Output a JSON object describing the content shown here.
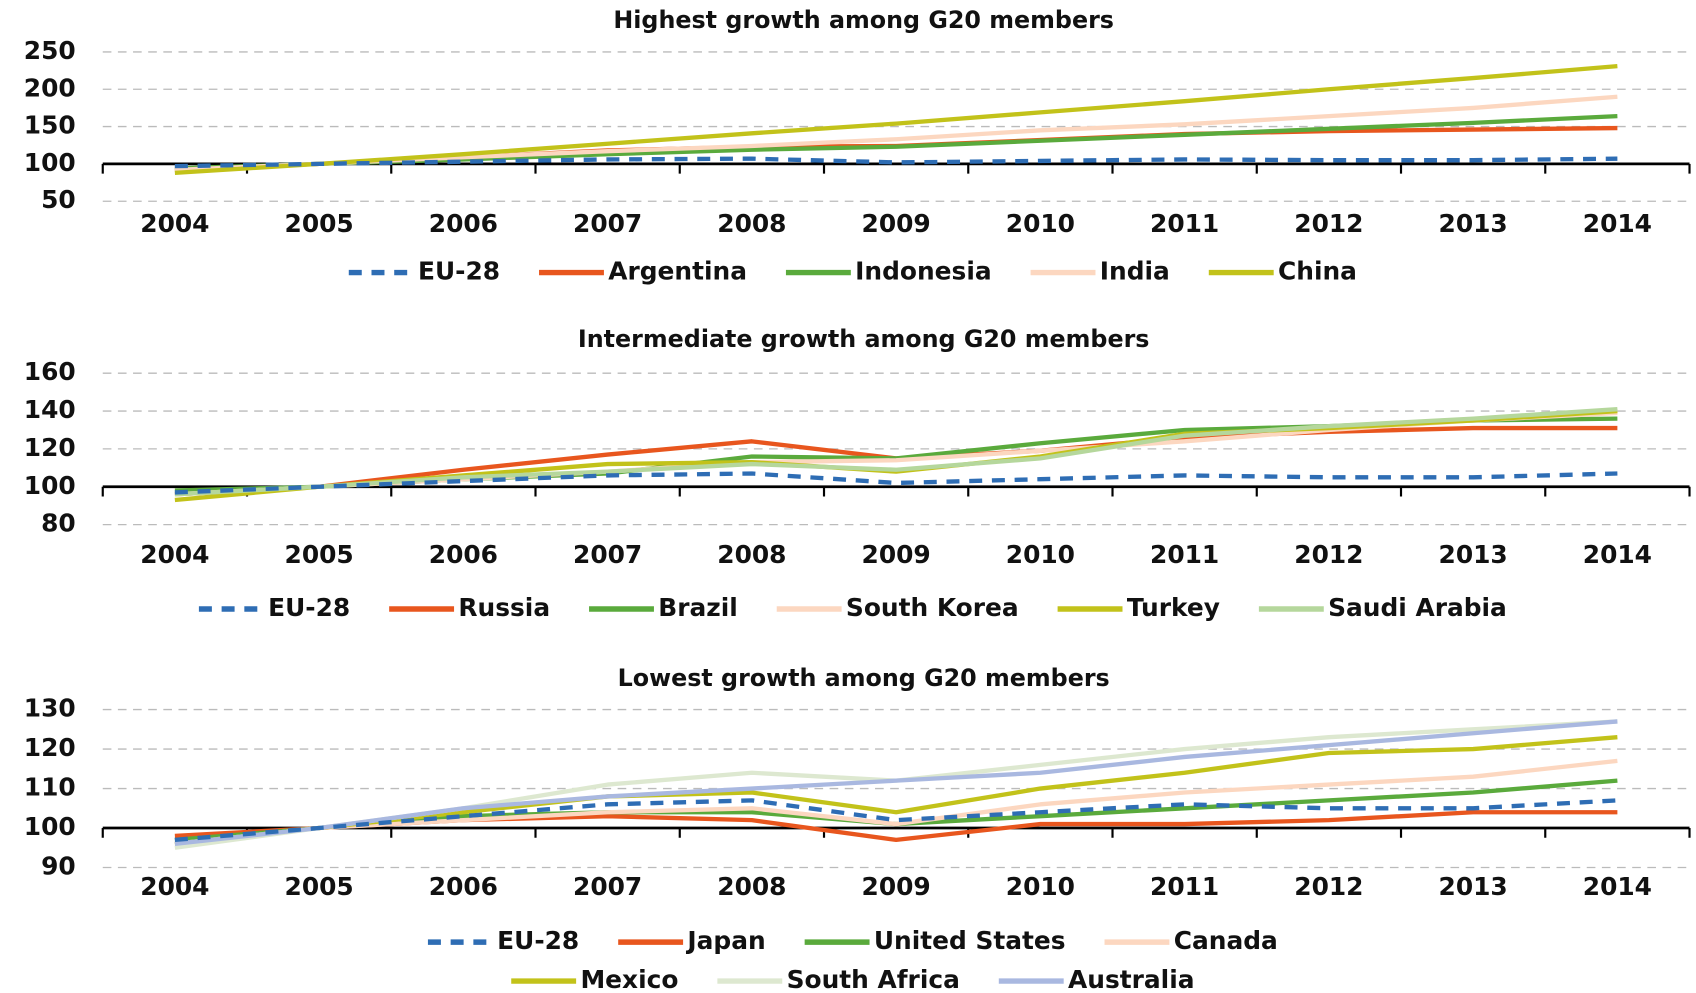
{
  "chart_data": [
    {
      "type": "line",
      "title": "Highest growth among G20 members",
      "categories": [
        "2004",
        "2005",
        "2006",
        "2007",
        "2008",
        "2009",
        "2010",
        "2011",
        "2012",
        "2013",
        "2014"
      ],
      "ylim": [
        50,
        250
      ],
      "yticks": [
        50,
        100,
        150,
        200,
        250
      ],
      "grid": true,
      "x_axis_crossing": 100,
      "series": [
        {
          "name": "EU-28",
          "color": "#2e6db4",
          "dashed": true,
          "values": [
            97,
            100,
            103,
            106,
            107,
            102,
            104,
            106,
            105,
            105,
            107
          ]
        },
        {
          "name": "Argentina",
          "color": "#e8561e",
          "values": [
            92,
            100,
            109,
            118,
            123,
            124,
            132,
            140,
            144,
            146,
            148
          ]
        },
        {
          "name": "Indonesia",
          "color": "#5aaa3c",
          "values": [
            94,
            100,
            106,
            113,
            119,
            123,
            131,
            139,
            147,
            155,
            164
          ]
        },
        {
          "name": "India",
          "color": "#fcd7c0",
          "values": [
            92,
            100,
            109,
            117,
            124,
            133,
            145,
            153,
            164,
            175,
            190
          ]
        },
        {
          "name": "China",
          "color": "#c2c21a",
          "values": [
            88,
            100,
            113,
            127,
            141,
            154,
            169,
            184,
            200,
            215,
            231
          ]
        }
      ]
    },
    {
      "type": "line",
      "title": "Intermediate growth among G20 members",
      "categories": [
        "2004",
        "2005",
        "2006",
        "2007",
        "2008",
        "2009",
        "2010",
        "2011",
        "2012",
        "2013",
        "2014"
      ],
      "ylim": [
        80,
        160
      ],
      "yticks": [
        80,
        100,
        120,
        140,
        160
      ],
      "grid": true,
      "x_axis_crossing": 100,
      "series": [
        {
          "name": "EU-28",
          "color": "#2e6db4",
          "dashed": true,
          "values": [
            97,
            100,
            103,
            106,
            107,
            102,
            104,
            106,
            105,
            105,
            107
          ]
        },
        {
          "name": "Russia",
          "color": "#e8561e",
          "values": [
            96,
            100,
            109,
            117,
            124,
            115,
            119,
            126,
            129,
            131,
            131
          ]
        },
        {
          "name": "Brazil",
          "color": "#5aaa3c",
          "values": [
            98,
            100,
            104,
            107,
            116,
            115,
            123,
            130,
            132,
            135,
            136
          ]
        },
        {
          "name": "South Korea",
          "color": "#fcd7c0",
          "values": [
            96,
            100,
            104,
            108,
            113,
            114,
            119,
            124,
            130,
            135,
            139
          ]
        },
        {
          "name": "Turkey",
          "color": "#c2c21a",
          "values": [
            93,
            100,
            106,
            112,
            113,
            108,
            116,
            128,
            131,
            135,
            140
          ]
        },
        {
          "name": "Saudi Arabia",
          "color": "#b5d79c",
          "values": [
            96,
            100,
            105,
            108,
            112,
            109,
            115,
            127,
            132,
            136,
            141
          ]
        }
      ]
    },
    {
      "type": "line",
      "title": "Lowest growth among G20 members",
      "categories": [
        "2004",
        "2005",
        "2006",
        "2007",
        "2008",
        "2009",
        "2010",
        "2011",
        "2012",
        "2013",
        "2014"
      ],
      "ylim": [
        90,
        130
      ],
      "yticks": [
        90,
        100,
        110,
        120,
        130
      ],
      "grid": true,
      "x_axis_crossing": 100,
      "series": [
        {
          "name": "EU-28",
          "color": "#2e6db4",
          "dashed": true,
          "values": [
            97,
            100,
            103,
            106,
            107,
            102,
            104,
            106,
            105,
            105,
            107
          ]
        },
        {
          "name": "Japan",
          "color": "#e8561e",
          "values": [
            98,
            100,
            102,
            103,
            102,
            97,
            101,
            101,
            102,
            104,
            104
          ]
        },
        {
          "name": "United States",
          "color": "#5aaa3c",
          "values": [
            97,
            100,
            103,
            104,
            104,
            101,
            103,
            105,
            107,
            109,
            112
          ]
        },
        {
          "name": "Canada",
          "color": "#fcd7c0",
          "values": [
            96,
            100,
            102,
            104,
            105,
            101,
            106,
            109,
            111,
            113,
            117
          ]
        },
        {
          "name": "Mexico",
          "color": "#c2c21a",
          "values": [
            96,
            100,
            104,
            108,
            109,
            104,
            110,
            114,
            119,
            120,
            123
          ]
        },
        {
          "name": "South Africa",
          "color": "#dde8d0",
          "values": [
            95,
            100,
            105,
            111,
            114,
            112,
            116,
            120,
            123,
            125,
            127
          ]
        },
        {
          "name": "Australia",
          "color": "#a9b8e0",
          "values": [
            96,
            100,
            105,
            108,
            110,
            112,
            114,
            118,
            121,
            124,
            127
          ]
        }
      ]
    }
  ]
}
